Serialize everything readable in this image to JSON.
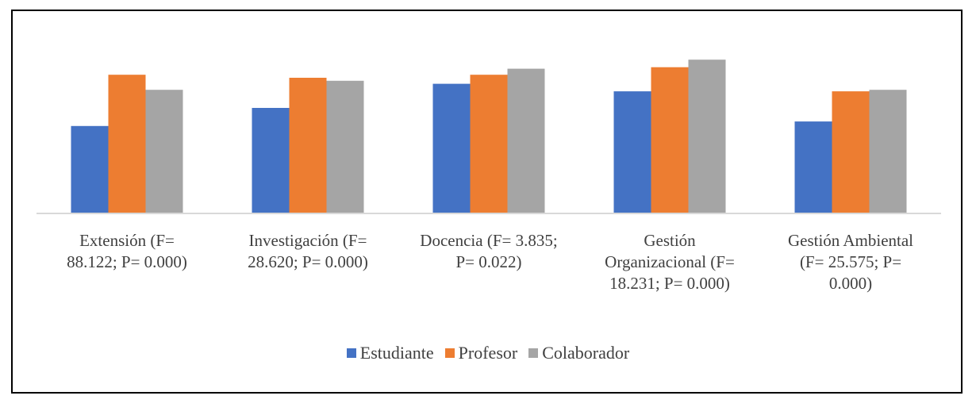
{
  "chart_data": {
    "type": "bar",
    "title": "",
    "xlabel": "",
    "ylabel": "",
    "categories": [
      [
        "Extensión (F=",
        "88.122; P= 0.000)"
      ],
      [
        "Investigación (F=",
        "28.620; P= 0.000)"
      ],
      [
        "Docencia (F= 3.835;",
        "P= 0.022)"
      ],
      [
        "Gestión",
        "Organizacional (F=",
        "18.231; P= 0.000)"
      ],
      [
        "Gestión Ambiental",
        "(F= 25.575; P=",
        "0.000)"
      ]
    ],
    "series": [
      {
        "name": "Estudiante",
        "color": "#4472C4",
        "values": [
          2.9,
          3.5,
          4.3,
          4.05,
          3.05
        ]
      },
      {
        "name": "Profesor",
        "color": "#ED7D31",
        "values": [
          4.6,
          4.5,
          4.6,
          4.85,
          4.05
        ]
      },
      {
        "name": "Colaborador",
        "color": "#A5A5A5",
        "values": [
          4.1,
          4.4,
          4.8,
          5.1,
          4.1
        ]
      }
    ],
    "ylim": [
      0,
      5.5
    ],
    "grid": false,
    "legend": "bottom"
  }
}
